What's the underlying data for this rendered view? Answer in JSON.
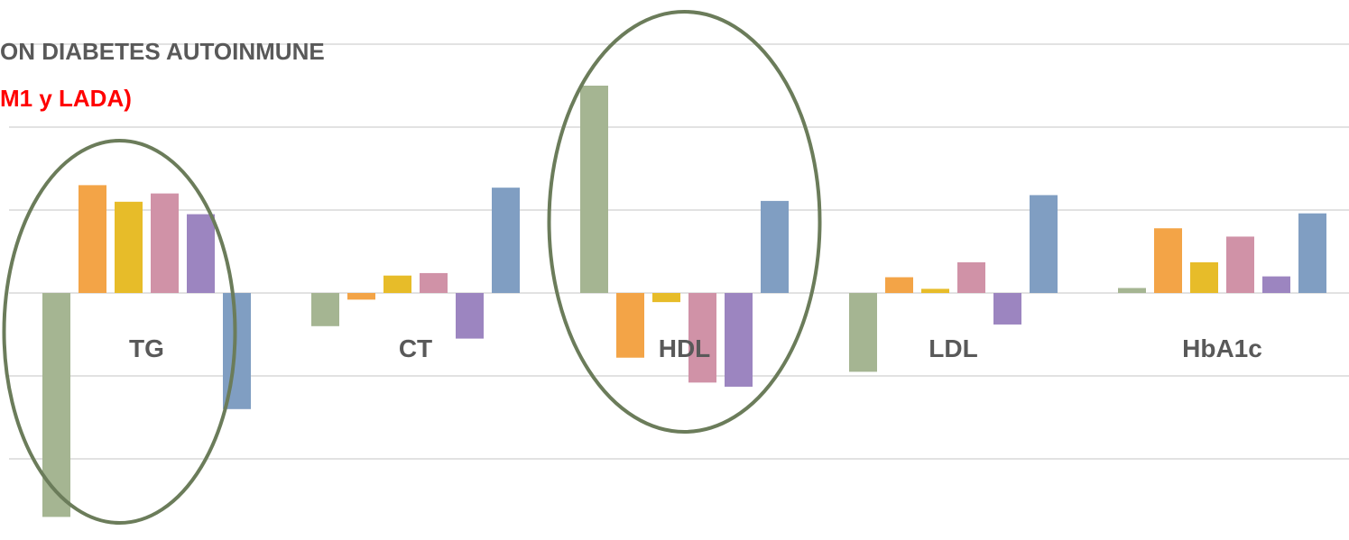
{
  "title_line1": "ON DIABETES AUTOINMUNE",
  "title_line2": "M1 y LADA)",
  "chart_data": {
    "type": "bar",
    "categories": [
      "TG",
      "CT",
      "HDL",
      "LDL",
      "HbA1c"
    ],
    "series": [
      {
        "color": "#a5b592",
        "values": [
          -2.7,
          -0.4,
          2.5,
          -0.95,
          0.06
        ]
      },
      {
        "color": "#f3a447",
        "values": [
          1.3,
          -0.08,
          -0.78,
          0.19,
          0.78
        ]
      },
      {
        "color": "#e7bc29",
        "values": [
          1.1,
          0.21,
          -0.11,
          0.05,
          0.37
        ]
      },
      {
        "color": "#d092a7",
        "values": [
          1.2,
          0.24,
          -1.08,
          0.37,
          0.68
        ]
      },
      {
        "color": "#9c85c0",
        "values": [
          0.95,
          -0.55,
          -1.13,
          -0.38,
          0.2
        ]
      },
      {
        "color": "#809ec2",
        "values": [
          -1.4,
          1.27,
          1.11,
          1.18,
          0.96
        ]
      }
    ],
    "ylim": [
      -3.0,
      3.0
    ],
    "grid": true,
    "annotations": [
      {
        "type": "ellipse",
        "around": "TG",
        "color": "#6b7c5a"
      },
      {
        "type": "ellipse",
        "around": "HDL",
        "color": "#6b7c5a"
      }
    ]
  }
}
